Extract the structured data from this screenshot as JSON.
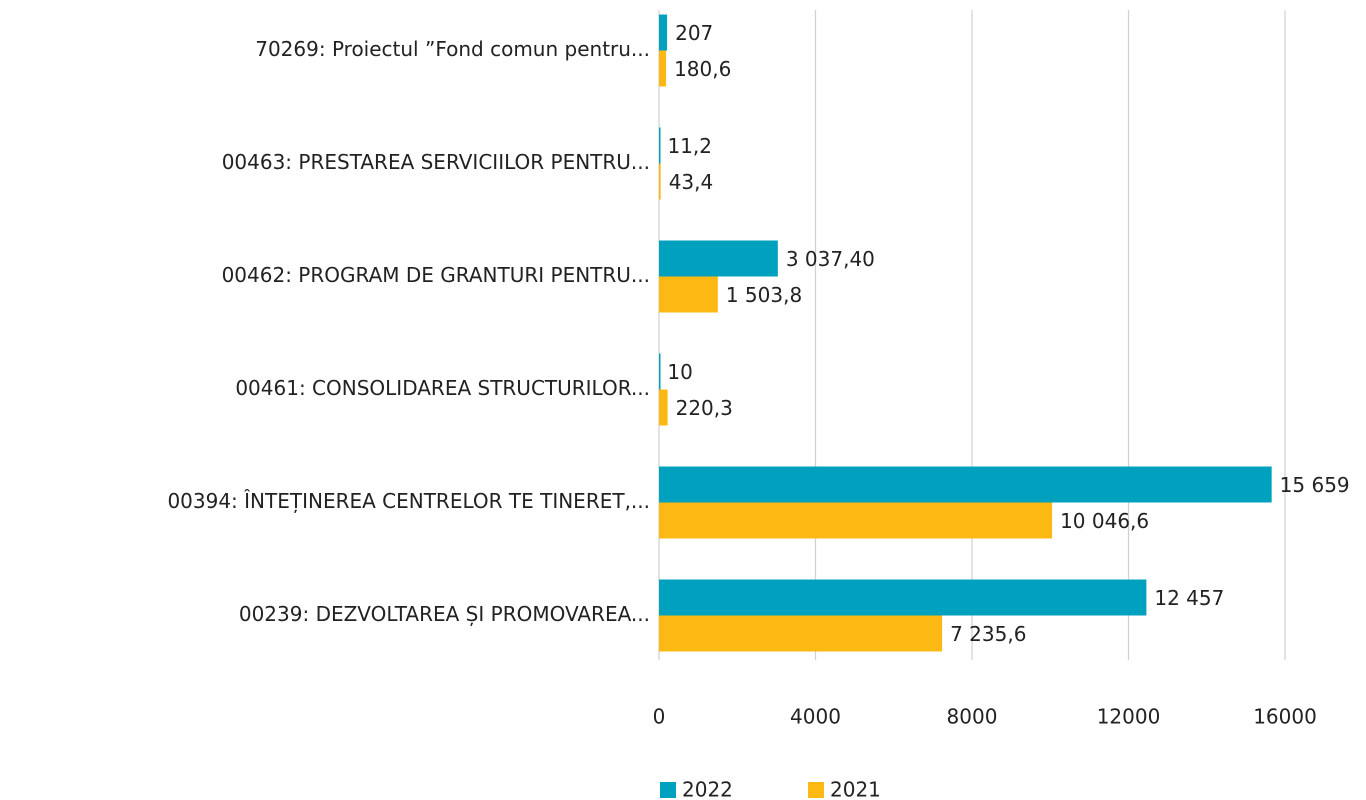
{
  "chart_data": {
    "type": "hbar",
    "categories": [
      "70269: Proiectul ”Fond comun pentru...",
      "00463: PRESTAREA SERVICIILOR PENTRU...",
      "00462: PROGRAM DE GRANTURI PENTRU...",
      "00461: CONSOLIDAREA STRUCTURILOR...",
      "00394: ÎNTEȚINEREA CENTRELOR TE TINERET,...",
      "00239: DEZVOLTAREA ȘI PROMOVAREA..."
    ],
    "series": [
      {
        "name": "2022",
        "color": "#00a0bf",
        "values": [
          207,
          11.2,
          3037.4,
          10,
          15659,
          12457
        ],
        "value_labels": [
          "207",
          "11,2",
          "3 037,40",
          "10",
          "15 659",
          "12 457"
        ]
      },
      {
        "name": "2021",
        "color": "#fdb913",
        "values": [
          180.6,
          43.4,
          1503.8,
          220.3,
          10046.6,
          7235.6
        ],
        "value_labels": [
          "180,6",
          "43,4",
          "1 503,8",
          "220,3",
          "10 046,6",
          "7 235,6"
        ]
      }
    ],
    "xlim": [
      0,
      16000
    ],
    "xticks": [
      0,
      4000,
      8000,
      12000,
      16000
    ],
    "grid": true,
    "legend": "bottom"
  }
}
